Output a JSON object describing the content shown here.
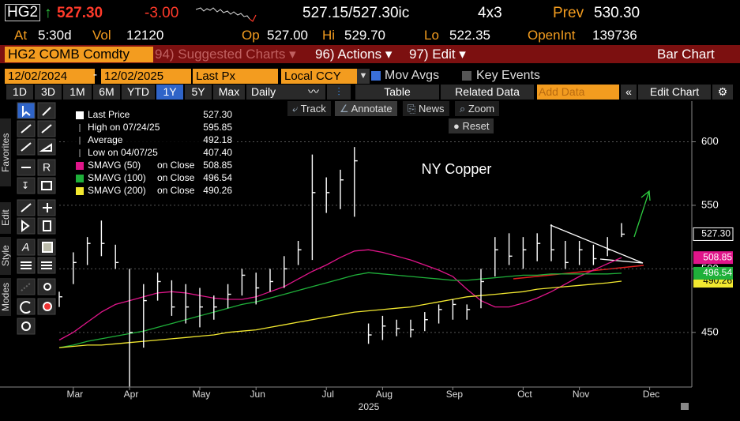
{
  "header": {
    "ticker": "HG2",
    "arrow": "↑",
    "last": "527.30",
    "change": "-3.00",
    "bid_ask": "527.15/527.30ic",
    "size": "4x3",
    "prev_label": "Prev",
    "prev": "530.30",
    "stats": [
      {
        "label": "At",
        "value": "5:30d"
      },
      {
        "label": "Vol",
        "value": "12120"
      },
      {
        "label": "Op",
        "value": "527.00"
      },
      {
        "label": "Hi",
        "value": "529.70"
      },
      {
        "label": "Lo",
        "value": "522.35"
      },
      {
        "label": "OpenInt",
        "value": "139736"
      }
    ]
  },
  "menu": {
    "security": "HG2 COMB Comdty",
    "items": [
      "94) Suggested Charts ▾",
      "96) Actions ▾",
      "97) Edit ▾"
    ],
    "chart_type": "Bar Chart"
  },
  "controls": {
    "start": "12/02/2024",
    "end": "12/02/2025",
    "field": "Last Px",
    "currency": "Local CCY",
    "mov_avgs": "Mov Avgs",
    "key_events": "Key Events"
  },
  "periods": [
    "1D",
    "3D",
    "1M",
    "6M",
    "YTD",
    "1Y",
    "5Y",
    "Max"
  ],
  "frequency": "Daily",
  "toolbar": [
    "Table",
    "Related Data",
    "Add Data",
    "Edit Chart"
  ],
  "chart_tools": [
    "Track",
    "Annotate",
    "News",
    "Zoom",
    "Reset"
  ],
  "side_tabs": [
    "Favorites",
    "Edit",
    "Style",
    "Modes"
  ],
  "chart_data": {
    "type": "ohlc",
    "title": "NY Copper",
    "x_label": "2025",
    "color": "#ffffff",
    "categories": [
      null,
      "Mar",
      null,
      null,
      null,
      "Apr",
      null,
      null,
      null,
      null,
      "May",
      null,
      null,
      null,
      "Jun",
      null,
      null,
      null,
      null,
      "Jul",
      null,
      null,
      null,
      "Aug",
      null,
      null,
      null,
      null,
      "Sep",
      null,
      null,
      null,
      null,
      "Oct",
      null,
      null,
      null,
      "Nov",
      null,
      null,
      null,
      null,
      "Dec",
      null,
      null
    ],
    "high": [
      482,
      513,
      525,
      538,
      519,
      500,
      488,
      497,
      491,
      488,
      485,
      479,
      488,
      500,
      497,
      500,
      510,
      522,
      590,
      572,
      578,
      595.85,
      457,
      463,
      460,
      460,
      466,
      472,
      476,
      472,
      500,
      525,
      528,
      525,
      528,
      535,
      522,
      522,
      519,
      525,
      536,
      null,
      null,
      null,
      null
    ],
    "low": [
      470,
      488,
      503,
      510,
      500,
      407.4,
      438,
      475,
      463,
      457,
      454,
      460,
      469,
      479,
      472,
      482,
      485,
      503,
      507,
      544,
      547,
      541,
      441,
      444,
      447,
      446,
      451,
      457,
      460,
      460,
      469,
      494,
      503,
      500,
      506,
      506,
      500,
      503,
      503,
      510,
      525,
      null,
      null,
      null,
      null
    ],
    "close": [
      478,
      505,
      520,
      520,
      505,
      450,
      475,
      490,
      470,
      470,
      470,
      470,
      480,
      495,
      485,
      490,
      500,
      515,
      560,
      560,
      570,
      585,
      448,
      455,
      453,
      452,
      460,
      468,
      472,
      468,
      490,
      515,
      510,
      515,
      520,
      515,
      505,
      515,
      508,
      515,
      527.3,
      null,
      null,
      null,
      null
    ],
    "price_label": "Last Price",
    "last_label": "527.30",
    "stats": [
      {
        "label": "High on 07/24/25",
        "value": "595.85"
      },
      {
        "label": "Average",
        "value": "492.18"
      },
      {
        "label": "Low on 04/07/25",
        "value": "407.40"
      }
    ],
    "lines": [
      {
        "name": "SMAVG (50)",
        "source": "on Close",
        "color": "#e0158a",
        "last_label": "508.85",
        "values": [
          444,
          450,
          458,
          466,
          472,
          475,
          478,
          481,
          482,
          481,
          479,
          477,
          476,
          476,
          478,
          482,
          486,
          492,
          498,
          503,
          509,
          514,
          515,
          513,
          510,
          507,
          503,
          499,
          494,
          484,
          475,
          470,
          470,
          473,
          477,
          482,
          488,
          494,
          499,
          504,
          508.85,
          null,
          null,
          null,
          null
        ]
      },
      {
        "name": "SMAVG (100)",
        "source": "on Close",
        "color": "#1fb03a",
        "last_label": "496.54",
        "values": [
          438,
          440,
          443,
          445,
          447,
          449,
          451,
          454,
          457,
          460,
          463,
          466,
          469,
          472,
          474,
          477,
          480,
          483,
          486,
          489,
          492,
          495,
          497,
          496,
          495,
          494,
          493,
          492,
          491,
          491,
          492,
          493,
          494,
          495,
          495,
          496,
          496,
          496,
          496,
          496,
          496.54,
          null,
          null,
          null,
          null
        ]
      },
      {
        "name": "SMAVG (200)",
        "source": "on Close",
        "color": "#f2e830",
        "last_label": "490.26",
        "values": [
          438,
          439,
          440,
          440,
          441,
          442,
          443,
          444,
          445,
          446,
          447,
          448,
          450,
          451,
          452,
          454,
          456,
          458,
          460,
          462,
          464,
          466,
          467,
          468,
          469,
          470,
          472,
          474,
          476,
          478,
          479,
          480,
          481,
          482,
          484,
          485,
          486,
          487,
          488,
          489,
          490.26,
          null,
          null,
          null,
          null
        ]
      }
    ],
    "ylim": [
      407,
      632
    ],
    "yticks": [
      450,
      500,
      550,
      600
    ],
    "grid": true
  }
}
